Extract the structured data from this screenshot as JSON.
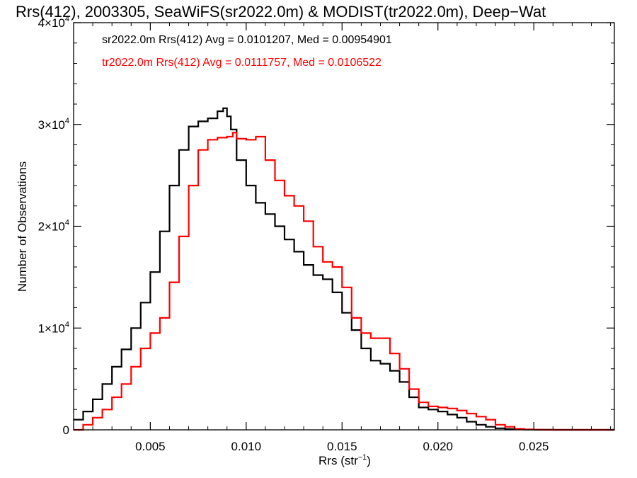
{
  "chart_data": {
    "type": "line",
    "title": "Rrs(412), 2003305, SeaWiFS(sr2022.0m) & MODIST(tr2022.0m), Deep−Wat",
    "xlabel_base": "Rrs (str",
    "xlabel_sup": "−1",
    "xlabel_tail": ")",
    "ylabel": "Number of Observations",
    "xlim": [
      0.001,
      0.0292
    ],
    "ylim": [
      0,
      40000
    ],
    "x_ticks": [
      {
        "value": 0.005,
        "label": "0.005"
      },
      {
        "value": 0.01,
        "label": "0.010"
      },
      {
        "value": 0.015,
        "label": "0.015"
      },
      {
        "value": 0.02,
        "label": "0.020"
      },
      {
        "value": 0.025,
        "label": "0.025"
      }
    ],
    "y_ticks": [
      {
        "value": 0,
        "label": "0",
        "exp": ""
      },
      {
        "value": 10000,
        "label": "1×10",
        "exp": "4"
      },
      {
        "value": 20000,
        "label": "2×10",
        "exp": "4"
      },
      {
        "value": 30000,
        "label": "3×10",
        "exp": "4"
      },
      {
        "value": 40000,
        "label": "4×10",
        "exp": "4"
      }
    ],
    "annotations": [
      {
        "text": "sr2022.0m Rrs(412) Avg = 0.0101207, Med = 0.00954901",
        "color": "#000000"
      },
      {
        "text": "tr2022.0m Rrs(412) Avg = 0.0111757, Med = 0.0106522",
        "color": "#ff0000"
      }
    ],
    "series": [
      {
        "color": "#000000",
        "x": [
          0.001,
          0.0015,
          0.002,
          0.0025,
          0.003,
          0.0035,
          0.004,
          0.0045,
          0.005,
          0.0055,
          0.006,
          0.0065,
          0.007,
          0.0075,
          0.008,
          0.0085,
          0.0088,
          0.009,
          0.0092,
          0.0095,
          0.01,
          0.0105,
          0.011,
          0.0115,
          0.012,
          0.0125,
          0.013,
          0.0135,
          0.014,
          0.0145,
          0.015,
          0.0155,
          0.016,
          0.0165,
          0.017,
          0.0175,
          0.018,
          0.0185,
          0.019,
          0.0195,
          0.02,
          0.0205,
          0.021,
          0.0215,
          0.022,
          0.0225,
          0.023,
          0.0235,
          0.024,
          0.0245,
          0.025,
          0.0255,
          0.026,
          0.027,
          0.0292
        ],
        "y": [
          1000,
          1800,
          3000,
          4500,
          6200,
          7900,
          10000,
          12500,
          15500,
          19500,
          24000,
          27500,
          29800,
          30300,
          30600,
          31300,
          31600,
          30800,
          29500,
          26500,
          24000,
          22300,
          21200,
          20000,
          18700,
          17500,
          16200,
          15200,
          14800,
          13500,
          11500,
          9800,
          8000,
          6800,
          6500,
          5800,
          4700,
          3200,
          2200,
          2000,
          1800,
          1500,
          1200,
          800,
          500,
          300,
          150,
          80,
          50,
          30,
          10,
          5,
          0,
          0,
          0
        ]
      },
      {
        "color": "#ff0000",
        "x": [
          0.001,
          0.0015,
          0.002,
          0.0025,
          0.003,
          0.0035,
          0.004,
          0.0045,
          0.005,
          0.0055,
          0.006,
          0.0065,
          0.007,
          0.0075,
          0.008,
          0.0085,
          0.009,
          0.0093,
          0.0095,
          0.01,
          0.0105,
          0.011,
          0.0115,
          0.012,
          0.0125,
          0.013,
          0.0135,
          0.014,
          0.0145,
          0.015,
          0.0155,
          0.016,
          0.0165,
          0.017,
          0.0175,
          0.018,
          0.0185,
          0.019,
          0.0195,
          0.02,
          0.0205,
          0.021,
          0.0215,
          0.022,
          0.0225,
          0.023,
          0.0235,
          0.024,
          0.0245,
          0.025,
          0.0255,
          0.026,
          0.027,
          0.028,
          0.0292
        ],
        "y": [
          0,
          500,
          1200,
          2000,
          3200,
          4500,
          6200,
          8000,
          9500,
          11000,
          14500,
          19000,
          24000,
          27500,
          28500,
          28700,
          28800,
          29200,
          28600,
          28500,
          28800,
          26500,
          24500,
          23000,
          22000,
          20500,
          18000,
          16500,
          16000,
          14000,
          11000,
          9500,
          9000,
          9000,
          7500,
          6000,
          4000,
          2700,
          2300,
          2200,
          2100,
          1900,
          1600,
          1300,
          1000,
          500,
          300,
          100,
          50,
          20,
          0,
          0,
          0,
          0,
          0
        ]
      }
    ]
  }
}
